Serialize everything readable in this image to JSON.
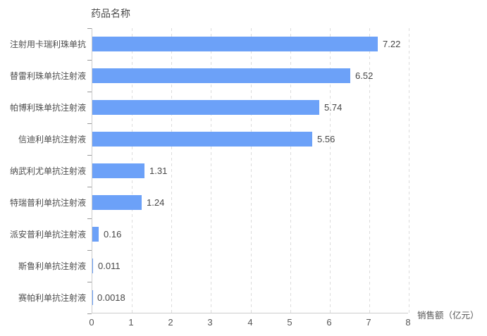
{
  "chart": {
    "y_axis_name": "药品名称",
    "x_axis_name": "销售额（亿元）",
    "bar_color": "#6ca1f8",
    "axis_line_color": "#cccccc",
    "gridline_color": "#dcdcdc",
    "label_color": "#4d4d4d",
    "value_color": "#464646"
  },
  "chart_data": {
    "type": "bar",
    "orientation": "horizontal",
    "title": "",
    "ylabel": "药品名称",
    "xlabel": "销售额（亿元）",
    "categories": [
      "注射用卡瑞利珠单抗",
      "替雷利珠单抗注射液",
      "帕博利珠单抗注射液",
      "信迪利单抗注射液",
      "纳武利尤单抗注射液",
      "特瑞普利单抗注射液",
      "派安普利单抗注射液",
      "斯鲁利单抗注射液",
      "赛帕利单抗注射液"
    ],
    "values": [
      7.22,
      6.52,
      5.74,
      5.56,
      1.31,
      1.24,
      0.16,
      0.011,
      0.0018
    ],
    "value_labels": [
      "7.22",
      "6.52",
      "5.74",
      "5.56",
      "1.31",
      "1.24",
      "0.16",
      "0.011",
      "0.0018"
    ],
    "x_ticks": [
      "0",
      "1",
      "2",
      "3",
      "4",
      "5",
      "6",
      "7",
      "8"
    ],
    "xlim": [
      0,
      8
    ],
    "grid": true,
    "grid_style": "dashed-vertical",
    "legend": false
  }
}
